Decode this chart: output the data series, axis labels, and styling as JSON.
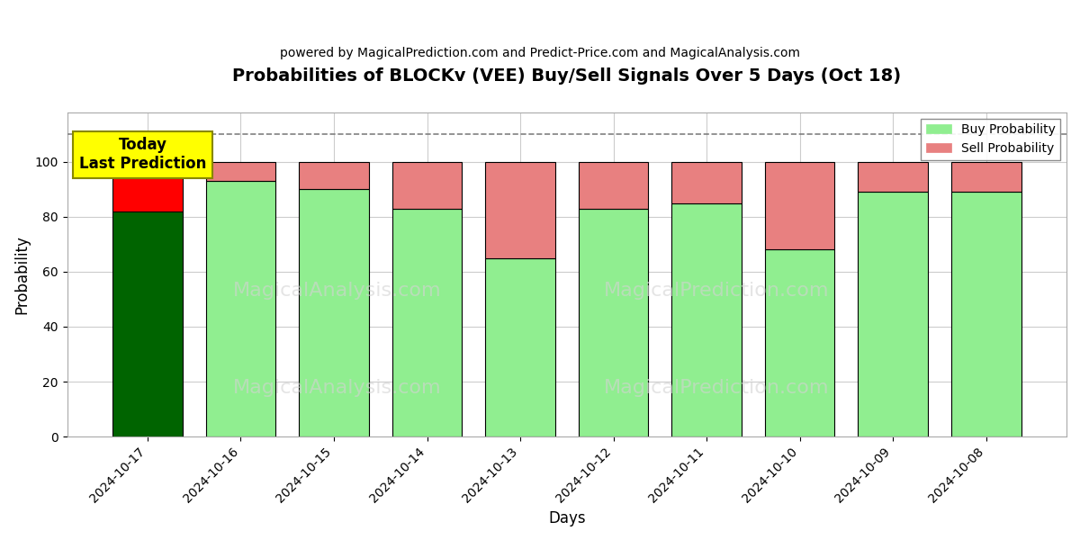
{
  "title": "Probabilities of BLOCKv (VEE) Buy/Sell Signals Over 5 Days (Oct 18)",
  "subtitle": "powered by MagicalPrediction.com and Predict-Price.com and MagicalAnalysis.com",
  "xlabel": "Days",
  "ylabel": "Probability",
  "dates": [
    "2024-10-17",
    "2024-10-16",
    "2024-10-15",
    "2024-10-14",
    "2024-10-13",
    "2024-10-12",
    "2024-10-11",
    "2024-10-10",
    "2024-10-09",
    "2024-10-08"
  ],
  "buy_probs": [
    82,
    93,
    90,
    83,
    65,
    83,
    85,
    68,
    89,
    89
  ],
  "sell_probs": [
    18,
    7,
    10,
    17,
    35,
    17,
    15,
    32,
    11,
    11
  ],
  "today_buy_color": "#006400",
  "today_sell_color": "#FF0000",
  "buy_color": "#90EE90",
  "sell_color": "#E88080",
  "bar_edge_color": "#000000",
  "dashed_line_y": 110,
  "ylim": [
    0,
    118
  ],
  "yticks": [
    0,
    20,
    40,
    60,
    80,
    100
  ],
  "annotation_text": "Today\nLast Prediction",
  "annotation_bg": "#FFFF00",
  "watermark1": "MagicalAnalysis.com",
  "watermark2": "MagicalPrediction.com",
  "figsize": [
    12,
    6
  ],
  "dpi": 100,
  "bg_color": "#ffffff",
  "plot_bg_color": "#ffffff",
  "grid_color": "#cccccc"
}
